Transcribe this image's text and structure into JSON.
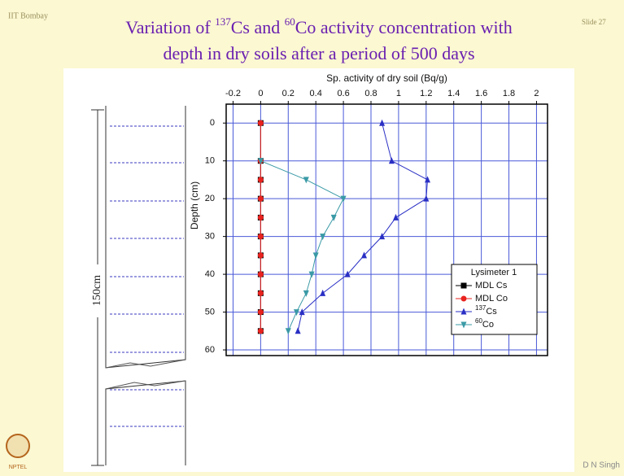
{
  "header": {
    "institute": "IIT Bombay",
    "slide": "Slide 27",
    "author": "D N Singh",
    "logo": "NPTEL",
    "title_line1": [
      "Variation of ",
      "137",
      "Cs and ",
      "60",
      "Co activity concentration with"
    ],
    "title_line2": "depth in dry soils after a period of 500 days"
  },
  "diagram": {
    "label": "150cm"
  },
  "chart_data": {
    "type": "line",
    "orientation": "horizontal",
    "xlabel": "Sp. activity of dry soil (Bq/g)",
    "ylabel": "Depth (cm)",
    "xlim": [
      -0.25,
      2.08
    ],
    "xticks": [
      -0.2,
      0.0,
      0.2,
      0.4,
      0.6,
      0.8,
      1.0,
      1.2,
      1.4,
      1.6,
      1.8,
      2.0
    ],
    "ylim": [
      -5,
      61.5
    ],
    "yticks": [
      0,
      10,
      20,
      30,
      40,
      50,
      60
    ],
    "y_inverted": true,
    "grid": true,
    "legend_title": "Lysimeter 1",
    "legend": "right",
    "y": [
      0,
      10,
      15,
      20,
      25,
      30,
      35,
      40,
      45,
      50,
      55
    ],
    "series": [
      {
        "name": "MDL Cs",
        "color": "#000000",
        "marker": "square",
        "values": [
          0,
          0,
          0,
          0,
          0,
          0,
          0,
          0,
          0,
          0,
          0
        ]
      },
      {
        "name": "MDL Co",
        "color": "#e8231f",
        "marker": "circle",
        "values": [
          0,
          0,
          0,
          0,
          0,
          0,
          0,
          0,
          0,
          0,
          0
        ]
      },
      {
        "name": "137Cs",
        "color": "#2a2fc4",
        "marker": "triangle",
        "values": [
          0.88,
          0.95,
          1.21,
          1.2,
          0.98,
          0.88,
          0.75,
          0.63,
          0.45,
          0.3,
          0.27
        ]
      },
      {
        "name": "60Co",
        "color": "#3a9aa6",
        "marker": "triangle-down",
        "values": [
          null,
          0,
          0.33,
          0.6,
          0.53,
          0.45,
          0.4,
          0.37,
          0.33,
          0.26,
          0.2
        ]
      }
    ]
  }
}
